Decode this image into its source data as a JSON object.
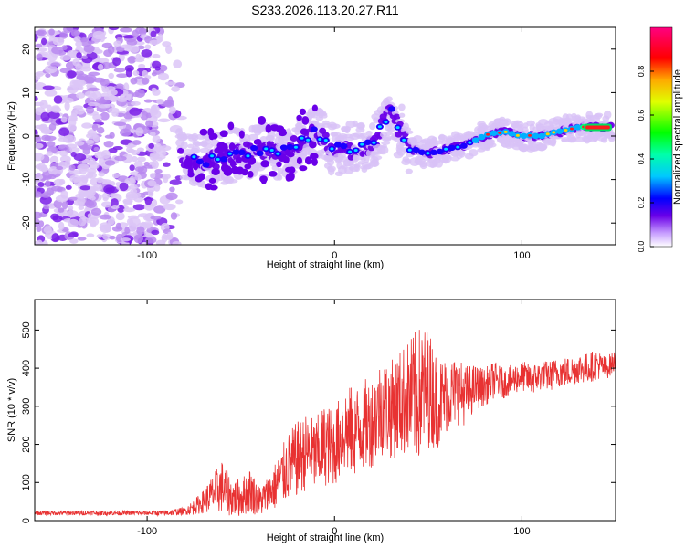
{
  "title": "S233.2026.113.20.27.R11",
  "chart_data": [
    {
      "type": "heatmap",
      "xlabel": "Height of straight line (km)",
      "ylabel": "Frequency (Hz)",
      "xlim": [
        -160,
        150
      ],
      "ylim": [
        -25,
        25
      ],
      "xticks": [
        -100,
        0,
        100
      ],
      "yticks": [
        -20,
        -10,
        0,
        10,
        20
      ],
      "colorbar": {
        "label": "Normalized spectral amplitude",
        "range": [
          0,
          1
        ],
        "ticks": [
          0.0,
          0.2,
          0.4,
          0.6,
          0.8
        ]
      },
      "ridge": [
        {
          "x": -80,
          "y": -5
        },
        {
          "x": -70,
          "y": -6
        },
        {
          "x": -60,
          "y": -5
        },
        {
          "x": -50,
          "y": -4
        },
        {
          "x": -40,
          "y": -3
        },
        {
          "x": -30,
          "y": -4
        },
        {
          "x": -20,
          "y": -2
        },
        {
          "x": -10,
          "y": 1
        },
        {
          "x": 0,
          "y": -3
        },
        {
          "x": 10,
          "y": -3
        },
        {
          "x": 20,
          "y": -2
        },
        {
          "x": 30,
          "y": 6
        },
        {
          "x": 40,
          "y": -3
        },
        {
          "x": 50,
          "y": -4
        },
        {
          "x": 60,
          "y": -3
        },
        {
          "x": 70,
          "y": -2
        },
        {
          "x": 80,
          "y": 0
        },
        {
          "x": 90,
          "y": 1
        },
        {
          "x": 100,
          "y": 0
        },
        {
          "x": 110,
          "y": 0
        },
        {
          "x": 120,
          "y": 1
        },
        {
          "x": 130,
          "y": 2
        },
        {
          "x": 140,
          "y": 2
        },
        {
          "x": 148,
          "y": 2
        }
      ]
    },
    {
      "type": "line",
      "xlabel": "Height of straight line (km)",
      "ylabel": "SNR (10 * v/v)",
      "xlim": [
        -160,
        150
      ],
      "ylim": [
        0,
        580
      ],
      "xticks": [
        -100,
        0,
        100
      ],
      "yticks": [
        0,
        100,
        200,
        300,
        400,
        500
      ],
      "color": "#e83232",
      "x": [
        -160,
        -140,
        -120,
        -100,
        -90,
        -80,
        -75,
        -70,
        -65,
        -60,
        -55,
        -50,
        -45,
        -40,
        -35,
        -30,
        -25,
        -20,
        -15,
        -10,
        -5,
        0,
        5,
        10,
        15,
        20,
        25,
        30,
        35,
        40,
        45,
        50,
        55,
        60,
        65,
        70,
        75,
        80,
        85,
        90,
        95,
        100,
        105,
        110,
        115,
        120,
        125,
        130,
        135,
        140,
        145,
        150
      ],
      "y": [
        20,
        20,
        20,
        20,
        20,
        25,
        35,
        50,
        70,
        90,
        60,
        60,
        80,
        50,
        70,
        100,
        140,
        160,
        180,
        170,
        200,
        190,
        240,
        230,
        250,
        260,
        300,
        290,
        310,
        320,
        330,
        350,
        310,
        330,
        340,
        330,
        350,
        350,
        370,
        360,
        370,
        380,
        370,
        380,
        380,
        390,
        390,
        400,
        400,
        410,
        400,
        420
      ],
      "spread": [
        6,
        6,
        6,
        6,
        8,
        10,
        20,
        30,
        50,
        70,
        50,
        50,
        60,
        40,
        50,
        70,
        90,
        100,
        100,
        100,
        110,
        100,
        120,
        120,
        120,
        120,
        130,
        130,
        140,
        160,
        180,
        160,
        120,
        100,
        90,
        80,
        60,
        50,
        50,
        40,
        40,
        40,
        40,
        40,
        40,
        40,
        40,
        40,
        40,
        40,
        30,
        30
      ]
    }
  ]
}
